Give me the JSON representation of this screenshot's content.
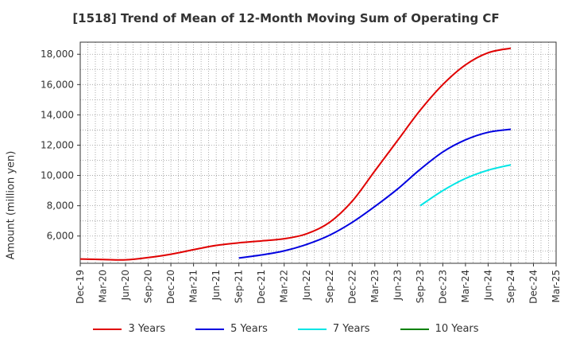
{
  "chart_data": {
    "type": "line",
    "title": "[1518]  Trend of Mean of 12-Month Moving Sum of Operating CF",
    "xlabel": "",
    "ylabel": "Amount (million yen)",
    "ylim": [
      4200,
      18800
    ],
    "yticks": [
      6000,
      8000,
      10000,
      12000,
      14000,
      16000,
      18000
    ],
    "ytick_labels": [
      "6,000",
      "8,000",
      "10,000",
      "12,000",
      "14,000",
      "16,000",
      "18,000"
    ],
    "categories": [
      "Dec-19",
      "Mar-20",
      "Jun-20",
      "Sep-20",
      "Dec-20",
      "Mar-21",
      "Jun-21",
      "Sep-21",
      "Dec-21",
      "Mar-22",
      "Jun-22",
      "Sep-22",
      "Dec-22",
      "Mar-23",
      "Jun-23",
      "Sep-23",
      "Dec-23",
      "Mar-24",
      "Jun-24",
      "Sep-24",
      "Dec-24",
      "Mar-25"
    ],
    "series": [
      {
        "name": "3 Years",
        "color": "#e00000",
        "values": [
          4480,
          4450,
          4430,
          4580,
          4800,
          5100,
          5380,
          5550,
          5680,
          5820,
          6150,
          6900,
          8300,
          10300,
          12300,
          14300,
          16000,
          17300,
          18100,
          18400,
          null,
          null
        ]
      },
      {
        "name": "5 Years",
        "color": "#0000e0",
        "values": [
          null,
          null,
          null,
          null,
          null,
          null,
          null,
          4550,
          4750,
          5020,
          5450,
          6050,
          6900,
          7950,
          9100,
          10400,
          11550,
          12350,
          12850,
          13050,
          null,
          null
        ]
      },
      {
        "name": "7 Years",
        "color": "#00e5e5",
        "values": [
          null,
          null,
          null,
          null,
          null,
          null,
          null,
          null,
          null,
          null,
          null,
          null,
          null,
          null,
          null,
          8000,
          9000,
          9800,
          10350,
          10700,
          null,
          null
        ]
      },
      {
        "name": "10 Years",
        "color": "#008000",
        "values": [
          null,
          null,
          null,
          null,
          null,
          null,
          null,
          null,
          null,
          null,
          null,
          null,
          null,
          null,
          null,
          null,
          null,
          null,
          null,
          null,
          null,
          null
        ]
      }
    ],
    "grid": true,
    "legend_position": "bottom"
  }
}
